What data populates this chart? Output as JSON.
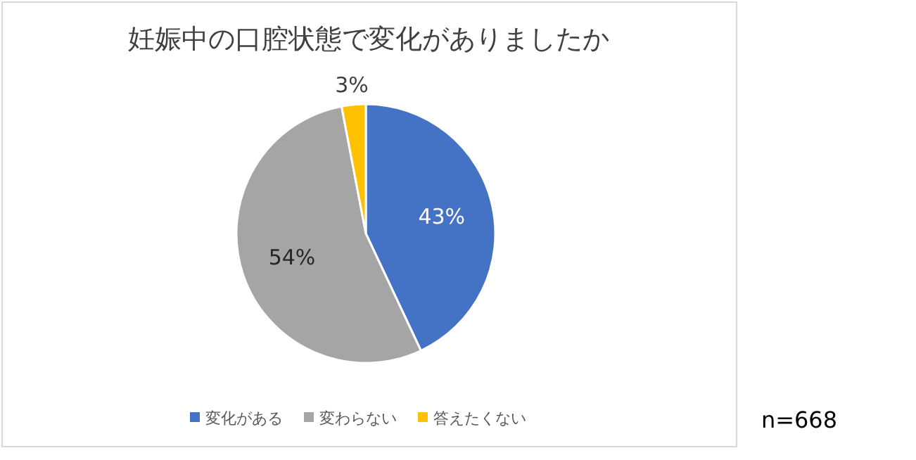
{
  "chart_data": {
    "type": "pie",
    "title": "妊娠中の口腔状態で変化がありましたか",
    "categories": [
      "変化がある",
      "変わらない",
      "答えたくない"
    ],
    "values": [
      43,
      54,
      3
    ],
    "value_labels": [
      "43%",
      "54%",
      "3%"
    ],
    "colors": [
      "#4472c4",
      "#a5a5a5",
      "#ffc000"
    ],
    "legend": "bottom",
    "annotations": [
      "n=668"
    ]
  }
}
